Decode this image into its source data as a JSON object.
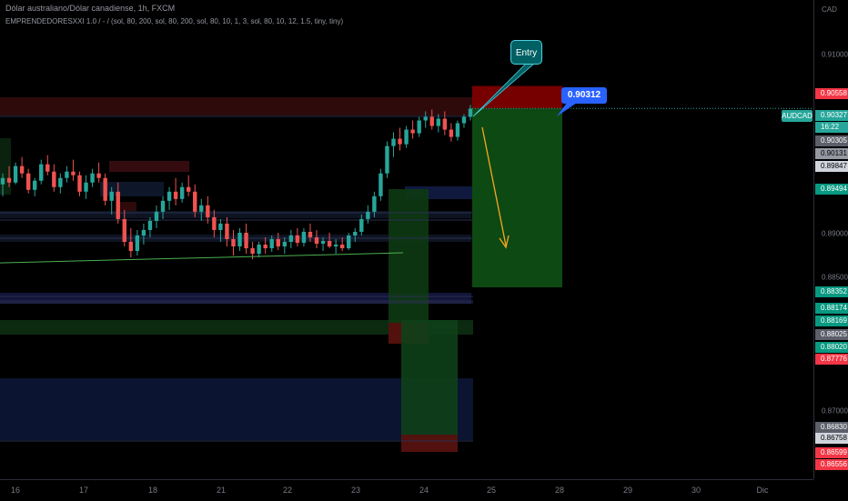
{
  "header": {
    "title": "Dólar australiano/Dólar canadiense, 1h, FXCM",
    "indicator": "EMPRENDEDORESXXI 1.0 / - / (sol, 80, 200, sol, 80, 200, sol, 80, 10, 1, 3, sol, 80, 10, 12, 1.5, tiny, tiny)"
  },
  "symbol_tag": "AUDCAD",
  "symbol_countdown": "16:22",
  "entry_label": "Entry",
  "entry_price_label": "0.90312",
  "currency_label": "CAD",
  "colors": {
    "bull": "#26a69a",
    "bear": "#ef5350",
    "stop": "#8b0000",
    "target": "#0e4d14",
    "annotation_arrow": "#f6a623"
  },
  "price_axis_ticks": [
    "0.91000",
    "0.89000",
    "0.88500",
    "0.87000"
  ],
  "price_tags": [
    {
      "text": "0.90558",
      "color": "#f23645"
    },
    {
      "text": "0.90327",
      "color": "#26a69a"
    },
    {
      "text": "16:22",
      "color": "#26a69a"
    },
    {
      "text": "0.90305",
      "color": "#5d606b"
    },
    {
      "text": "0.90131",
      "color": "#9598a1"
    },
    {
      "text": "0.89847",
      "color": "#d1d4dc"
    },
    {
      "text": "0.89494",
      "color": "#089981"
    },
    {
      "text": "0.88352",
      "color": "#089981"
    },
    {
      "text": "0.88174",
      "color": "#089981"
    },
    {
      "text": "0.88169",
      "color": "#089981"
    },
    {
      "text": "0.88025",
      "color": "#5d606b"
    },
    {
      "text": "0.88020",
      "color": "#089981"
    },
    {
      "text": "0.87776",
      "color": "#f23645"
    },
    {
      "text": "0.86830",
      "color": "#5d606b"
    },
    {
      "text": "0.86758",
      "color": "#d1d4dc"
    },
    {
      "text": "0.86599",
      "color": "#f23645"
    },
    {
      "text": "0.86556",
      "color": "#f23645"
    }
  ],
  "chart_data": {
    "type": "candlestick",
    "x_tick_labels": [
      "16",
      "17",
      "18",
      "21",
      "22",
      "23",
      "24",
      "25",
      "28",
      "29",
      "30",
      "Dic"
    ],
    "ylim": [
      0.8625,
      0.915
    ],
    "series": [
      {
        "values": [
          [
            0.8948,
            0.896,
            0.8935,
            0.8955
          ],
          [
            0.8955,
            0.8968,
            0.8945,
            0.895
          ],
          [
            0.895,
            0.8972,
            0.8948,
            0.8968
          ],
          [
            0.8968,
            0.8978,
            0.8955,
            0.896
          ],
          [
            0.896,
            0.8965,
            0.8938,
            0.8942
          ],
          [
            0.8942,
            0.8955,
            0.8935,
            0.8952
          ],
          [
            0.8952,
            0.8975,
            0.8948,
            0.897
          ],
          [
            0.897,
            0.898,
            0.8958,
            0.8962
          ],
          [
            0.8962,
            0.897,
            0.894,
            0.8945
          ],
          [
            0.8945,
            0.896,
            0.8938,
            0.8955
          ],
          [
            0.8955,
            0.8968,
            0.895,
            0.8962
          ],
          [
            0.8962,
            0.8975,
            0.8952,
            0.8958
          ],
          [
            0.8958,
            0.8962,
            0.8935,
            0.894
          ],
          [
            0.894,
            0.8958,
            0.8932,
            0.895
          ],
          [
            0.895,
            0.8965,
            0.8945,
            0.896
          ],
          [
            0.896,
            0.8972,
            0.895,
            0.8955
          ],
          [
            0.8955,
            0.896,
            0.8925,
            0.893
          ],
          [
            0.893,
            0.8945,
            0.8915,
            0.894
          ],
          [
            0.894,
            0.895,
            0.8905,
            0.891
          ],
          [
            0.891,
            0.892,
            0.888,
            0.8885
          ],
          [
            0.8885,
            0.89,
            0.8868,
            0.8875
          ],
          [
            0.8875,
            0.8898,
            0.887,
            0.8892
          ],
          [
            0.8892,
            0.8905,
            0.8882,
            0.8898
          ],
          [
            0.8898,
            0.8912,
            0.889,
            0.8908
          ],
          [
            0.8908,
            0.8925,
            0.89,
            0.8918
          ],
          [
            0.8918,
            0.8935,
            0.891,
            0.893
          ],
          [
            0.893,
            0.8945,
            0.892,
            0.894
          ],
          [
            0.894,
            0.8955,
            0.8925,
            0.8932
          ],
          [
            0.8932,
            0.895,
            0.8928,
            0.8945
          ],
          [
            0.8945,
            0.8958,
            0.8935,
            0.894
          ],
          [
            0.894,
            0.8948,
            0.8912,
            0.8918
          ],
          [
            0.8918,
            0.8932,
            0.8908,
            0.8925
          ],
          [
            0.8925,
            0.8935,
            0.8905,
            0.8912
          ],
          [
            0.8912,
            0.892,
            0.889,
            0.8898
          ],
          [
            0.8898,
            0.891,
            0.8885,
            0.8905
          ],
          [
            0.8905,
            0.8912,
            0.888,
            0.8888
          ],
          [
            0.8888,
            0.8898,
            0.887,
            0.888
          ],
          [
            0.888,
            0.89,
            0.8875,
            0.8895
          ],
          [
            0.8895,
            0.8905,
            0.8872,
            0.8878
          ],
          [
            0.8878,
            0.8885,
            0.8866,
            0.8872
          ],
          [
            0.8872,
            0.8885,
            0.8868,
            0.8882
          ],
          [
            0.8882,
            0.889,
            0.8872,
            0.8878
          ],
          [
            0.8878,
            0.8892,
            0.8874,
            0.8888
          ],
          [
            0.8888,
            0.8895,
            0.8876,
            0.888
          ],
          [
            0.888,
            0.889,
            0.8872,
            0.8885
          ],
          [
            0.8885,
            0.8898,
            0.8878,
            0.8892
          ],
          [
            0.8892,
            0.89,
            0.888,
            0.8884
          ],
          [
            0.8884,
            0.89,
            0.888,
            0.8896
          ],
          [
            0.8896,
            0.8905,
            0.8885,
            0.889
          ],
          [
            0.889,
            0.8898,
            0.8878,
            0.8883
          ],
          [
            0.8883,
            0.889,
            0.8875,
            0.8886
          ],
          [
            0.8886,
            0.8895,
            0.8878,
            0.888
          ],
          [
            0.888,
            0.8888,
            0.8872,
            0.8882
          ],
          [
            0.8882,
            0.889,
            0.8875,
            0.8878
          ],
          [
            0.8878,
            0.8895,
            0.8876,
            0.8892
          ],
          [
            0.8892,
            0.89,
            0.8885,
            0.8896
          ],
          [
            0.8896,
            0.8915,
            0.8892,
            0.891
          ],
          [
            0.891,
            0.8925,
            0.8905,
            0.8918
          ],
          [
            0.8918,
            0.894,
            0.8912,
            0.8935
          ],
          [
            0.8935,
            0.8965,
            0.893,
            0.896
          ],
          [
            0.896,
            0.8995,
            0.8955,
            0.899
          ],
          [
            0.899,
            0.9005,
            0.8978,
            0.8998
          ],
          [
            0.8998,
            0.901,
            0.8985,
            0.8992
          ],
          [
            0.8992,
            0.9012,
            0.8988,
            0.9008
          ],
          [
            0.9008,
            0.9018,
            0.8998,
            0.9004
          ],
          [
            0.9004,
            0.9022,
            0.9,
            0.9018
          ],
          [
            0.9018,
            0.9028,
            0.901,
            0.9022
          ],
          [
            0.9022,
            0.903,
            0.9008,
            0.9012
          ],
          [
            0.9012,
            0.9025,
            0.9005,
            0.902
          ],
          [
            0.902,
            0.9028,
            0.9002,
            0.9008
          ],
          [
            0.9008,
            0.9015,
            0.8995,
            0.9
          ],
          [
            0.9,
            0.9018,
            0.8996,
            0.9015
          ],
          [
            0.9015,
            0.9025,
            0.901,
            0.9022
          ],
          [
            0.9022,
            0.9035,
            0.9018,
            0.9031
          ]
        ]
      }
    ],
    "position_tool": {
      "entry": 0.90312,
      "stop": 0.90558,
      "target": 0.88352
    },
    "support_line": {
      "from": 0.8862,
      "to": 0.8873
    }
  }
}
